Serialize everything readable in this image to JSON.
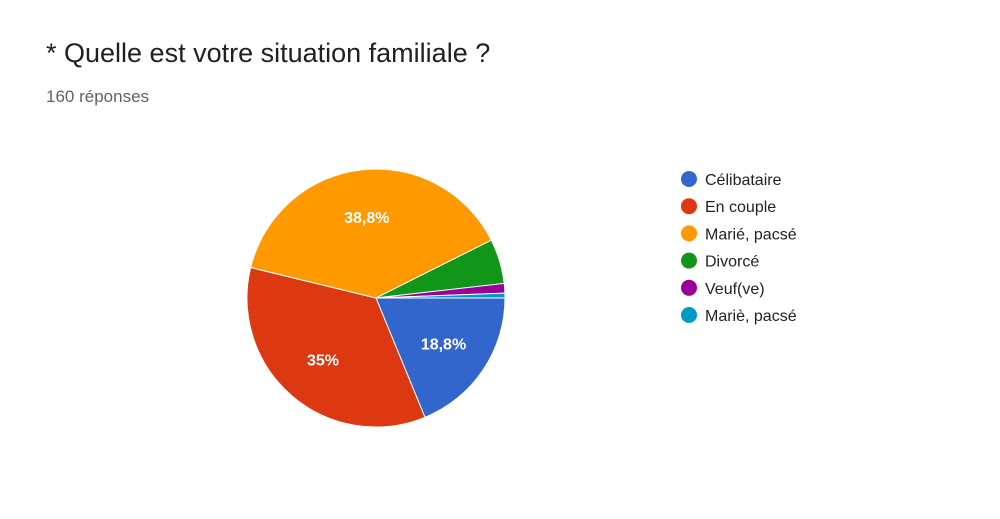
{
  "header": {
    "title": "* Quelle est votre situation familiale ?",
    "subtitle": "160 réponses"
  },
  "chart_data": {
    "type": "pie",
    "total_responses": 160,
    "slices": [
      {
        "label": "Célibataire",
        "value": 18.8,
        "display": "18,8%",
        "color": "#3366cc"
      },
      {
        "label": "En couple",
        "value": 35.0,
        "display": "35%",
        "color": "#dc3912"
      },
      {
        "label": "Marié, pacsé",
        "value": 38.8,
        "display": "38,8%",
        "color": "#ff9900"
      },
      {
        "label": "Divorcé",
        "value": 5.6,
        "display": "",
        "color": "#109618"
      },
      {
        "label": "Veuf(ve)",
        "value": 1.2,
        "display": "",
        "color": "#990099"
      },
      {
        "label": "Mariè, pacsé",
        "value": 0.6,
        "display": "",
        "color": "#0099c6"
      }
    ],
    "legend_position": "right"
  }
}
